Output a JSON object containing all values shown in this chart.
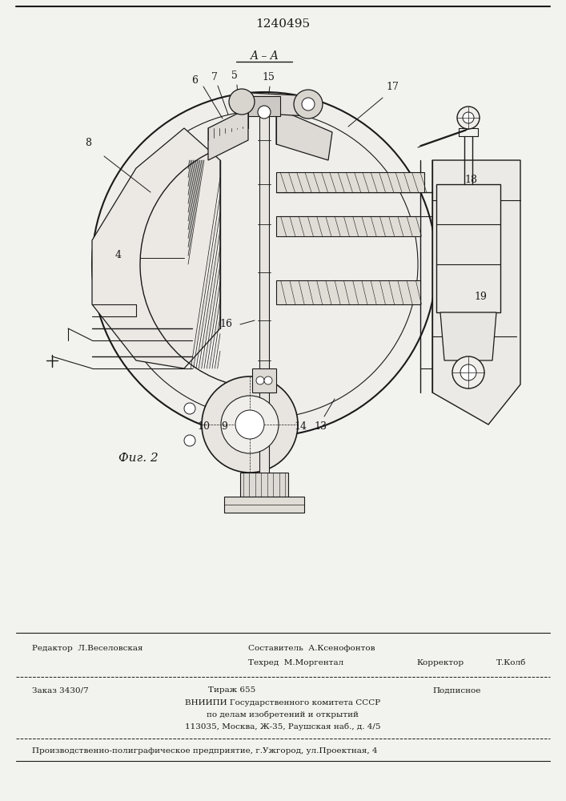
{
  "patent_number": "1240495",
  "section_label": "A–A",
  "figure_label": "Фиг. 2",
  "bg_color": "#f2f2ee",
  "line_color": "#1a1a1a",
  "text_color": "#1a1a1a",
  "footer": {
    "line1_left": "Редактор  Л.Веселовская",
    "line1_right": "Составитель  А.Ксенофонтов",
    "line2_mid": "Техред  М.Моргентал",
    "line2_corr": "Корректор",
    "line2_name": "Т.Колб",
    "zakas": "Заказ 3430/7",
    "tirazh": "Тираж 655",
    "podpisnoe": "Подписное",
    "vnipi1": "ВНИИПИ Государственного комитета СССР",
    "vnipi2": "по делам изобретений и открытий",
    "vnipi3": "113035, Москва, Ж-35, Раушская наб., д. 4/5",
    "lastline": "Производственно-полиграфическое предприятие, г.Ужгород, ул.Проектная, 4"
  }
}
